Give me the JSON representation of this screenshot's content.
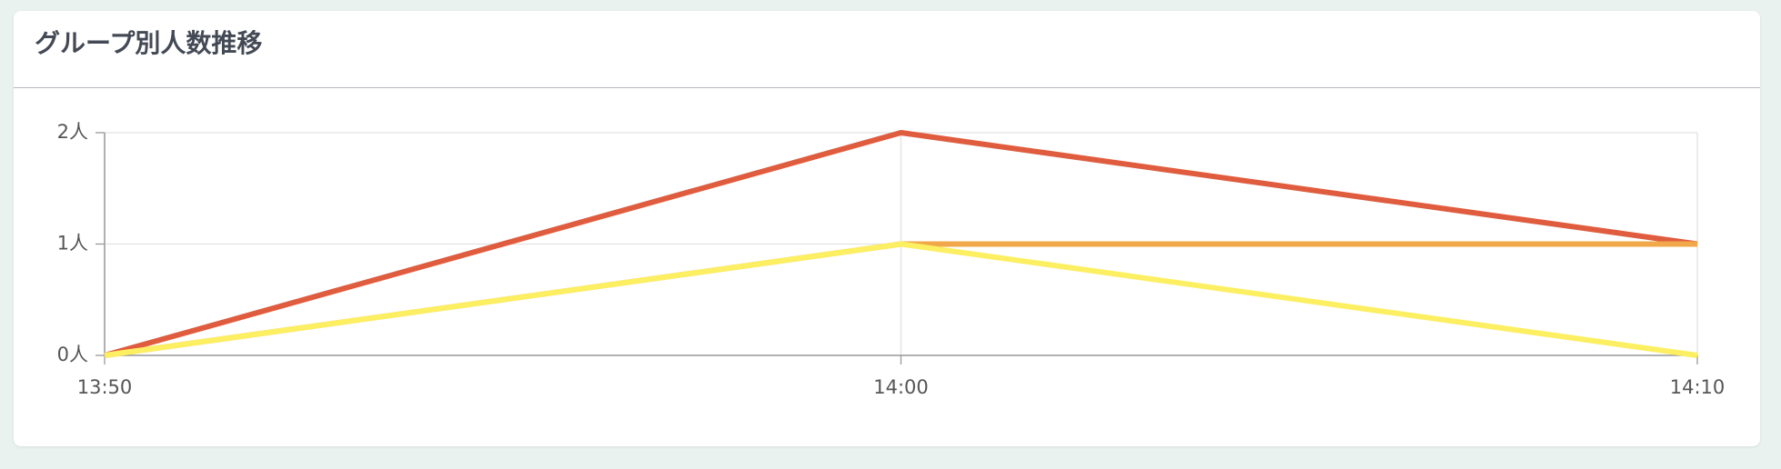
{
  "chart_data": {
    "type": "line",
    "title": "グループ別人数推移",
    "categories": [
      "13:50",
      "14:00",
      "14:10"
    ],
    "series": [
      {
        "color": "#e05c3e",
        "values": [
          0,
          2,
          1
        ]
      },
      {
        "color": "#f0a84a",
        "values": [
          0,
          1,
          1
        ]
      },
      {
        "color": "#fcef62",
        "values": [
          0,
          1,
          0
        ]
      }
    ],
    "ylim": [
      0,
      2
    ],
    "yticks": [
      {
        "value": 0,
        "label": "0人"
      },
      {
        "value": 1,
        "label": "1人"
      },
      {
        "value": 2,
        "label": "2人"
      }
    ],
    "grid": true
  }
}
